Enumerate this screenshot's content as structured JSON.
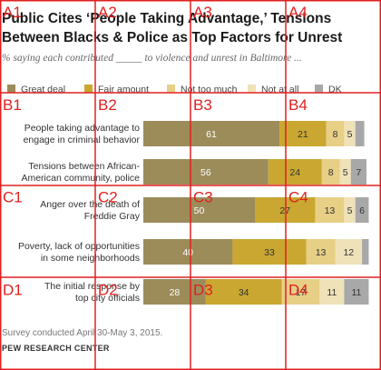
{
  "title_line1": "Public Cites ‘People Taking Advantage,’ Tensions",
  "title_line2": "Between Blacks & Police as Top Factors for Unrest",
  "subtitle": "% saying each contributed _____ to violence and unrest in Baltimore ...",
  "note": "Survey conducted April 30-May 3, 2015.",
  "source": "PEW RESEARCH CENTER",
  "grid_labels": [
    "A1",
    "A2",
    "A3",
    "A4",
    "B1",
    "B2",
    "B3",
    "B4",
    "C1",
    "C2",
    "C3",
    "C4",
    "D1",
    "D2",
    "D3",
    "D4"
  ],
  "colors": {
    "great_deal": "#9c8c5a",
    "fair_amount": "#c9a731",
    "not_too_much": "#e7cf86",
    "not_at_all": "#efe2b8",
    "dk": "#a8a8a8",
    "grid": "#e02020"
  },
  "chart_data": {
    "type": "bar",
    "orientation": "horizontal",
    "stacked": true,
    "legend_position": "top",
    "categories": [
      [
        "People taking advantage to",
        "engage in criminal behavior"
      ],
      [
        "Tensions between African-",
        "American community, police"
      ],
      [
        "Anger over the death of",
        "Freddie Gray"
      ],
      [
        "Poverty, lack of opportunities",
        "in some neighborhoods"
      ],
      [
        "The initial response by",
        "top city officials"
      ]
    ],
    "series": [
      {
        "name": "Great deal",
        "color": "#9c8c5a",
        "values": [
          61,
          56,
          50,
          40,
          28
        ]
      },
      {
        "name": "Fair amount",
        "color": "#c9a731",
        "values": [
          21,
          24,
          27,
          33,
          34
        ]
      },
      {
        "name": "Not too much",
        "color": "#e7cf86",
        "values": [
          8,
          8,
          13,
          13,
          17
        ]
      },
      {
        "name": "Not at all",
        "color": "#efe2b8",
        "values": [
          5,
          5,
          5,
          12,
          11
        ]
      },
      {
        "name": "DK",
        "color": "#a8a8a8",
        "values": [
          4,
          7,
          6,
          3,
          11
        ]
      }
    ],
    "value_labels": [
      [
        "61",
        "21",
        "8",
        "5",
        ""
      ],
      [
        "56",
        "24",
        "8",
        "5",
        "7"
      ],
      [
        "50",
        "27",
        "13",
        "5",
        "6"
      ],
      [
        "40",
        "33",
        "13",
        "12",
        ""
      ],
      [
        "28",
        "34",
        "17",
        "11",
        "11"
      ]
    ]
  }
}
